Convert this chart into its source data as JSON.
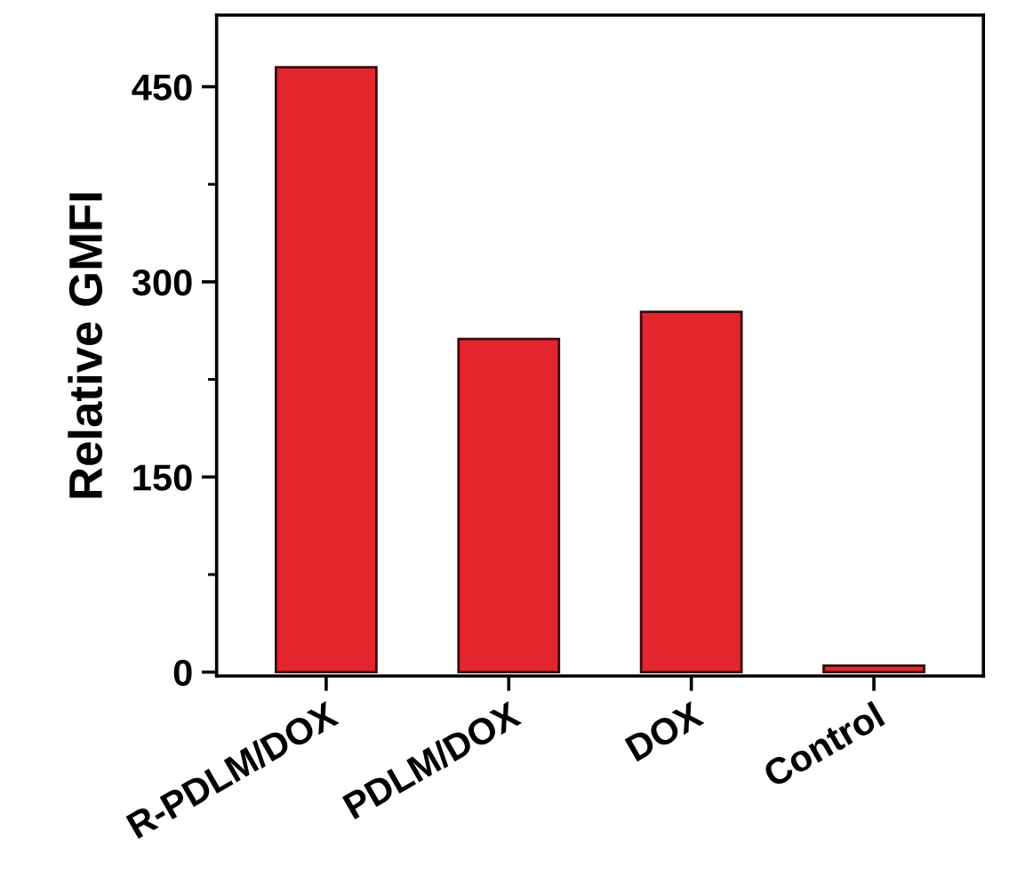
{
  "chart_data": {
    "type": "bar",
    "ylabel": "Relative GMFI",
    "categories": [
      "R-PDLM/DOX",
      "PDLM/DOX",
      "DOX",
      "Control"
    ],
    "values": [
      465,
      256,
      277,
      5
    ],
    "color": "#e3262e",
    "ylim": [
      -3,
      505
    ],
    "yticks": [
      0,
      150,
      300,
      450
    ],
    "grid": false
  }
}
